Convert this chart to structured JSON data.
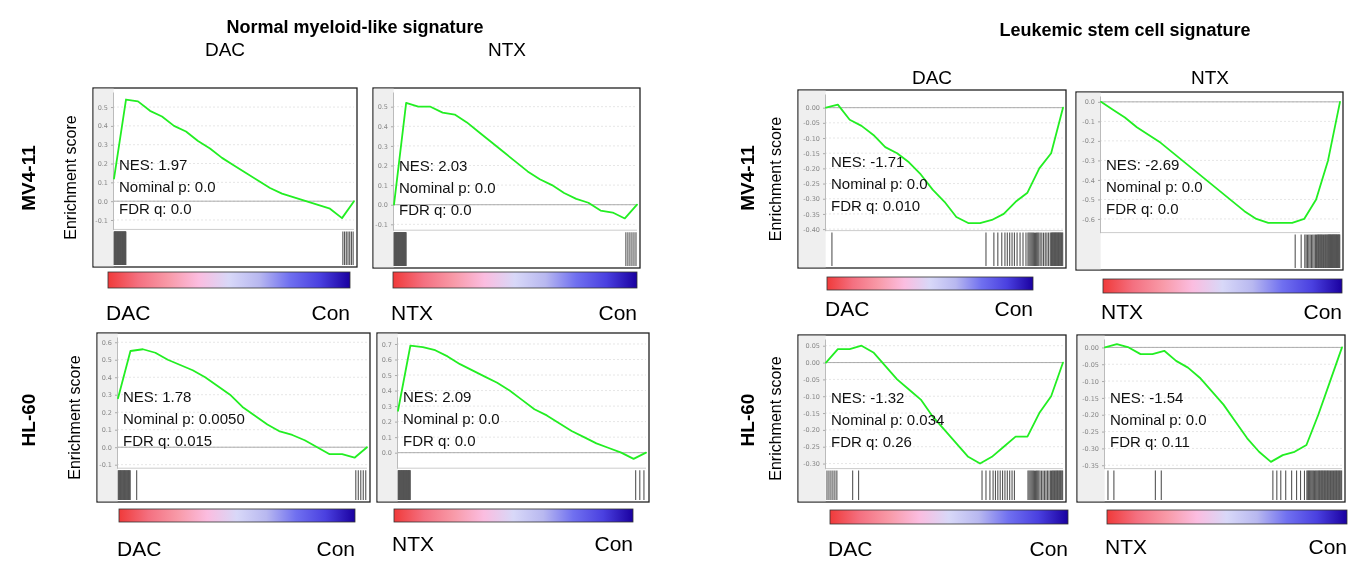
{
  "chart_data": [
    {
      "type": "line",
      "title": "DAC",
      "ylabel": "Enrichment score",
      "categories": [
        null,
        null,
        null,
        null,
        null,
        null,
        null,
        null,
        null,
        null,
        null,
        null,
        null,
        null,
        null,
        null,
        null,
        null,
        null,
        null,
        null
      ],
      "series": [
        {
          "color": "#22ee22",
          "values": [
            0.12,
            0.54,
            0.53,
            0.48,
            0.45,
            0.4,
            0.37,
            0.32,
            0.28,
            0.23,
            0.19,
            0.15,
            0.11,
            0.07,
            0.04,
            0.02,
            0.0,
            -0.02,
            -0.04,
            -0.09,
            0.0
          ]
        }
      ],
      "ylim": [
        -0.15,
        0.58
      ],
      "yticks": [
        -0.1,
        {
          "value": 0,
          "label": "0.0"
        },
        0.1,
        0.2,
        0.3,
        0.4,
        0.5
      ],
      "grid": "y",
      "tick_labels": "y",
      "ref_lines": [
        {
          "axis": "y",
          "value": 0,
          "color": "#999999"
        }
      ],
      "annotations": [
        "NES: 1.97",
        "Nominal p: 0.0",
        "FDR q: 0.0",
        "DAC",
        "Con",
        "Normal myeloid-like signature",
        "MV4-11"
      ]
    },
    {
      "type": "line",
      "title": "NTX",
      "categories": [
        null,
        null,
        null,
        null,
        null,
        null,
        null,
        null,
        null,
        null,
        null,
        null,
        null,
        null,
        null,
        null,
        null,
        null,
        null,
        null,
        null
      ],
      "series": [
        {
          "color": "#22ee22",
          "values": [
            0.0,
            0.52,
            0.5,
            0.5,
            0.47,
            0.46,
            0.42,
            0.37,
            0.32,
            0.27,
            0.22,
            0.17,
            0.13,
            0.1,
            0.06,
            0.03,
            0.01,
            -0.03,
            -0.04,
            -0.07,
            0.0
          ]
        }
      ],
      "ylim": [
        -0.13,
        0.575
      ],
      "yticks": [
        -0.1,
        {
          "value": 0,
          "label": "0.0"
        },
        0.1,
        0.2,
        0.3,
        0.4,
        0.5
      ],
      "grid": "y",
      "tick_labels": "y",
      "ref_lines": [
        {
          "axis": "y",
          "value": 0,
          "color": "#999999"
        }
      ],
      "annotations": [
        "NES: 2.03",
        "Nominal p: 0.0",
        "FDR q: 0.0",
        "NTX",
        "Con"
      ]
    },
    {
      "type": "line",
      "title": "DAC",
      "ylabel": "Enrichment score",
      "categories": [
        null,
        null,
        null,
        null,
        null,
        null,
        null,
        null,
        null,
        null,
        null,
        null,
        null,
        null,
        null,
        null,
        null,
        null,
        null,
        null,
        null
      ],
      "series": [
        {
          "color": "#22ee22",
          "values": [
            0.0,
            0.01,
            -0.04,
            -0.06,
            -0.09,
            -0.13,
            -0.15,
            -0.18,
            -0.22,
            -0.27,
            -0.31,
            -0.36,
            -0.38,
            -0.38,
            -0.37,
            -0.35,
            -0.31,
            -0.28,
            -0.2,
            -0.15,
            0.0
          ]
        }
      ],
      "ylim": [
        -0.405,
        0.045
      ],
      "yticks": [
        {
          "value": 0,
          "label": "0.00"
        },
        -0.05,
        {
          "value": -0.1,
          "label": "-0.10"
        },
        -0.15,
        {
          "value": -0.2,
          "label": "-0.20"
        },
        -0.25,
        {
          "value": -0.3,
          "label": "-0.30"
        },
        -0.35,
        {
          "value": -0.4,
          "label": "-0.40"
        }
      ],
      "grid": "y",
      "tick_labels": "y",
      "ref_lines": [
        {
          "axis": "y",
          "value": 0,
          "color": "#999999"
        }
      ],
      "annotations": [
        "NES: -1.71",
        "Nominal p: 0.0",
        "FDR q: 0.010",
        "DAC",
        "Con",
        "Leukemic stem cell signature",
        "MV4-11"
      ]
    },
    {
      "type": "line",
      "title": "NTX",
      "categories": [
        null,
        null,
        null,
        null,
        null,
        null,
        null,
        null,
        null,
        null,
        null,
        null,
        null,
        null,
        null,
        null,
        null,
        null,
        null,
        null,
        null
      ],
      "series": [
        {
          "color": "#22ee22",
          "values": [
            0.0,
            -0.04,
            -0.08,
            -0.13,
            -0.17,
            -0.21,
            -0.26,
            -0.31,
            -0.36,
            -0.41,
            -0.46,
            -0.51,
            -0.56,
            -0.6,
            -0.62,
            -0.62,
            -0.62,
            -0.6,
            -0.5,
            -0.3,
            0.0
          ]
        }
      ],
      "ylim": [
        -0.67,
        0.03
      ],
      "yticks": [
        {
          "value": 0,
          "label": "0.0"
        },
        -0.1,
        -0.2,
        -0.3,
        -0.4,
        -0.5,
        -0.6
      ],
      "grid": "y",
      "tick_labels": "y",
      "ref_lines": [
        {
          "axis": "y",
          "value": 0,
          "color": "#999999"
        }
      ],
      "annotations": [
        "NES: -2.69",
        "Nominal p: 0.0",
        "FDR q: 0.0",
        "NTX",
        "Con"
      ]
    },
    {
      "type": "line",
      "ylabel": "Enrichment score",
      "categories": [
        null,
        null,
        null,
        null,
        null,
        null,
        null,
        null,
        null,
        null,
        null,
        null,
        null,
        null,
        null,
        null,
        null,
        null,
        null,
        null,
        null
      ],
      "series": [
        {
          "color": "#22ee22",
          "values": [
            0.28,
            0.55,
            0.56,
            0.54,
            0.5,
            0.47,
            0.44,
            0.4,
            0.35,
            0.3,
            0.23,
            0.18,
            0.13,
            0.09,
            0.07,
            0.04,
            0.0,
            -0.04,
            -0.04,
            -0.06,
            0.0
          ]
        }
      ],
      "ylim": [
        -0.12,
        0.63
      ],
      "yticks": [
        -0.1,
        {
          "value": 0,
          "label": "0.0"
        },
        0.1,
        0.2,
        0.3,
        0.4,
        0.5,
        0.6
      ],
      "grid": "y",
      "tick_labels": "y",
      "ref_lines": [
        {
          "axis": "y",
          "value": 0,
          "color": "#999999"
        }
      ],
      "annotations": [
        "NES: 1.78",
        "Nominal p: 0.0050",
        "FDR q: 0.015",
        "DAC",
        "Con",
        "HL-60"
      ]
    },
    {
      "type": "line",
      "categories": [
        null,
        null,
        null,
        null,
        null,
        null,
        null,
        null,
        null,
        null,
        null,
        null,
        null,
        null,
        null,
        null,
        null,
        null,
        null,
        null,
        null
      ],
      "series": [
        {
          "color": "#22ee22",
          "values": [
            0.27,
            0.69,
            0.68,
            0.66,
            0.62,
            0.57,
            0.53,
            0.49,
            0.45,
            0.4,
            0.34,
            0.28,
            0.24,
            0.19,
            0.14,
            0.1,
            0.06,
            0.03,
            0.0,
            -0.04,
            0.0
          ]
        }
      ],
      "ylim": [
        -0.1,
        0.745
      ],
      "yticks": [
        {
          "value": 0,
          "label": "0.0"
        },
        0.1,
        0.2,
        0.3,
        0.4,
        0.5,
        0.6,
        0.7
      ],
      "grid": "y",
      "tick_labels": "y",
      "ref_lines": [
        {
          "axis": "y",
          "value": 0,
          "color": "#999999"
        }
      ],
      "annotations": [
        "NES: 2.09",
        "Nominal p: 0.0",
        "FDR q: 0.0",
        "NTX",
        "Con"
      ]
    },
    {
      "type": "line",
      "ylabel": "Enrichment score",
      "categories": [
        null,
        null,
        null,
        null,
        null,
        null,
        null,
        null,
        null,
        null,
        null,
        null,
        null,
        null,
        null,
        null,
        null,
        null,
        null,
        null,
        null
      ],
      "series": [
        {
          "color": "#22ee22",
          "values": [
            0.0,
            0.04,
            0.04,
            0.05,
            0.03,
            -0.01,
            -0.05,
            -0.08,
            -0.11,
            -0.16,
            -0.2,
            -0.24,
            -0.28,
            -0.3,
            -0.28,
            -0.25,
            -0.22,
            -0.22,
            -0.15,
            -0.1,
            0.0
          ]
        }
      ],
      "ylim": [
        -0.315,
        0.07
      ],
      "yticks": [
        0.05,
        {
          "value": 0,
          "label": "0.00"
        },
        -0.05,
        {
          "value": -0.1,
          "label": "-0.10"
        },
        -0.15,
        {
          "value": -0.2,
          "label": "-0.20"
        },
        -0.25,
        {
          "value": -0.3,
          "label": "-0.30"
        }
      ],
      "grid": "y",
      "tick_labels": "y",
      "ref_lines": [
        {
          "axis": "y",
          "value": 0,
          "color": "#999999"
        }
      ],
      "annotations": [
        "NES: -1.32",
        "Nominal p: 0.034",
        "FDR q: 0.26",
        "DAC",
        "Con",
        "HL-60"
      ]
    },
    {
      "type": "line",
      "categories": [
        null,
        null,
        null,
        null,
        null,
        null,
        null,
        null,
        null,
        null,
        null,
        null,
        null,
        null,
        null,
        null,
        null,
        null,
        null,
        null,
        null
      ],
      "series": [
        {
          "color": "#22ee22",
          "values": [
            0.0,
            0.01,
            0.0,
            -0.02,
            -0.02,
            -0.01,
            -0.04,
            -0.06,
            -0.09,
            -0.13,
            -0.17,
            -0.22,
            -0.27,
            -0.31,
            -0.34,
            -0.32,
            -0.31,
            -0.29,
            -0.2,
            -0.1,
            0.0
          ]
        }
      ],
      "ylim": [
        -0.36,
        0.025
      ],
      "yticks": [
        {
          "value": 0,
          "label": "0.00"
        },
        -0.05,
        {
          "value": -0.1,
          "label": "-0.10"
        },
        -0.15,
        {
          "value": -0.2,
          "label": "-0.20"
        },
        -0.25,
        {
          "value": -0.3,
          "label": "-0.30"
        },
        -0.35
      ],
      "grid": "y",
      "tick_labels": "y",
      "ref_lines": [
        {
          "axis": "y",
          "value": 0,
          "color": "#999999"
        }
      ],
      "annotations": [
        "NES: -1.54",
        "Nominal p: 0.0",
        "FDR q: 0.11",
        "NTX",
        "Con"
      ]
    }
  ]
}
